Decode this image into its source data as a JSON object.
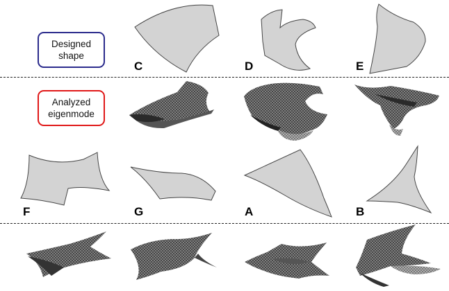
{
  "labels": {
    "designed": "Designed\nshape",
    "analyzed": "Analyzed\neigenmode"
  },
  "shapes": {
    "C": "C",
    "D": "D",
    "E": "E",
    "F": "F",
    "G": "G",
    "A": "A",
    "B": "B"
  },
  "colors": {
    "shape_fill": "#d3d3d3",
    "shape_stroke": "#444444",
    "mesh_dark": "#3a3a3a",
    "mesh_mid": "#6d6d6d",
    "designed_border": "#2b2b8c",
    "analyzed_border": "#e01818"
  }
}
